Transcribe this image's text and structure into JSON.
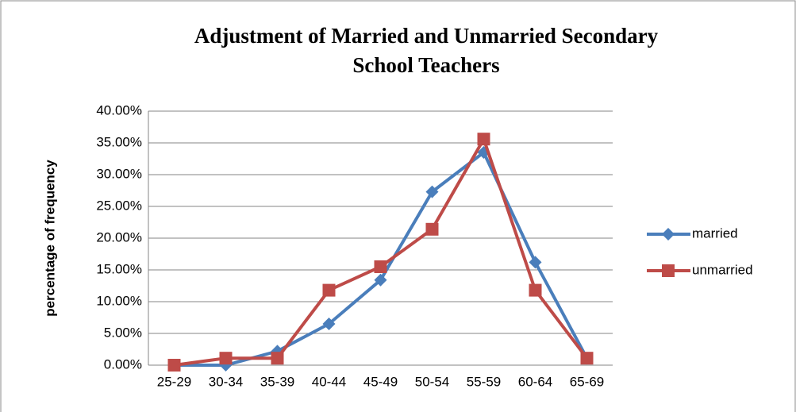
{
  "chart_data": {
    "type": "line",
    "title": "Adjustment of Married and Unmarried Secondary School Teachers",
    "y_label": "percentage of frequency",
    "categories": [
      "25-29",
      "30-34",
      "35-39",
      "40-44",
      "45-49",
      "50-54",
      "55-59",
      "60-64",
      "65-69"
    ],
    "series": [
      {
        "name": "married",
        "color": "#4a7ebb",
        "marker": "diamond",
        "values": [
          0,
          0,
          2.2,
          6.5,
          13.4,
          27.3,
          33.5,
          16.2,
          1.1
        ]
      },
      {
        "name": "unmarried",
        "color": "#be4b48",
        "marker": "square",
        "values": [
          0,
          1.1,
          1.1,
          11.8,
          15.5,
          21.4,
          35.6,
          11.8,
          1.1
        ]
      }
    ],
    "ylim": [
      0,
      40
    ],
    "yticks": [
      {
        "value": 0,
        "label": "0.00%"
      },
      {
        "value": 5,
        "label": "5.00%"
      },
      {
        "value": 10,
        "label": "10.00%"
      },
      {
        "value": 15,
        "label": "15.00%"
      },
      {
        "value": 20,
        "label": "20.00%"
      },
      {
        "value": 25,
        "label": "25.00%"
      },
      {
        "value": 30,
        "label": "30.00%"
      },
      {
        "value": 35,
        "label": "35.00%"
      },
      {
        "value": 40,
        "label": "40.00%"
      }
    ],
    "grid": true,
    "legend": "right"
  }
}
